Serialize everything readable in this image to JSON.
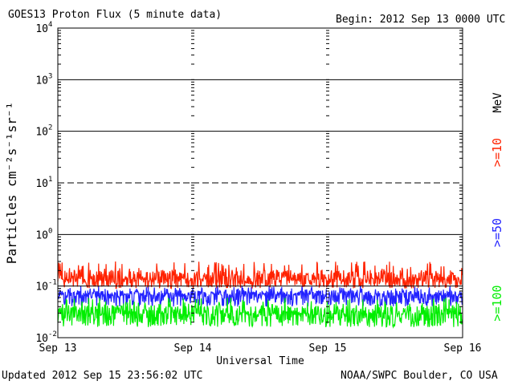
{
  "chart_data": {
    "type": "line",
    "title": "GOES13 Proton Flux (5 minute data)",
    "begin_label": "Begin: 2012 Sep 13 0000 UTC",
    "xlabel": "Universal Time",
    "ylabel": "Particles cm⁻²s⁻¹sr⁻¹",
    "y_scale": "log",
    "ylim": [
      0.01,
      10000
    ],
    "y_ticks": [
      {
        "value": 10000,
        "base": "10",
        "exp": "4"
      },
      {
        "value": 1000,
        "base": "10",
        "exp": "3"
      },
      {
        "value": 100,
        "base": "10",
        "exp": "2"
      },
      {
        "value": 10,
        "base": "10",
        "exp": "1"
      },
      {
        "value": 1,
        "base": "10",
        "exp": "0"
      },
      {
        "value": 0.1,
        "base": "10",
        "exp": "-1"
      },
      {
        "value": 0.01,
        "base": "10",
        "exp": "-2"
      }
    ],
    "x_ticks": [
      "Sep 13",
      "Sep 14",
      "Sep 15",
      "Sep 16"
    ],
    "x_range_days": [
      0,
      3
    ],
    "threshold_lines": [
      {
        "value": 10,
        "style": "dashed"
      },
      {
        "value": 1,
        "style": "solid"
      }
    ],
    "energy_unit": "MeV",
    "series": [
      {
        "name": ">=10",
        "color": "#ff2200",
        "typical": 0.13,
        "low": 0.09,
        "high": 0.3
      },
      {
        "name": ">=50",
        "color": "#2222ff",
        "typical": 0.065,
        "low": 0.04,
        "high": 0.1
      },
      {
        "name": ">=100",
        "color": "#00ee00",
        "typical": 0.028,
        "low": 0.016,
        "high": 0.06
      }
    ]
  },
  "footer": {
    "updated": "Updated 2012 Sep 15 23:56:02 UTC",
    "credit": "NOAA/SWPC Boulder, CO USA"
  }
}
